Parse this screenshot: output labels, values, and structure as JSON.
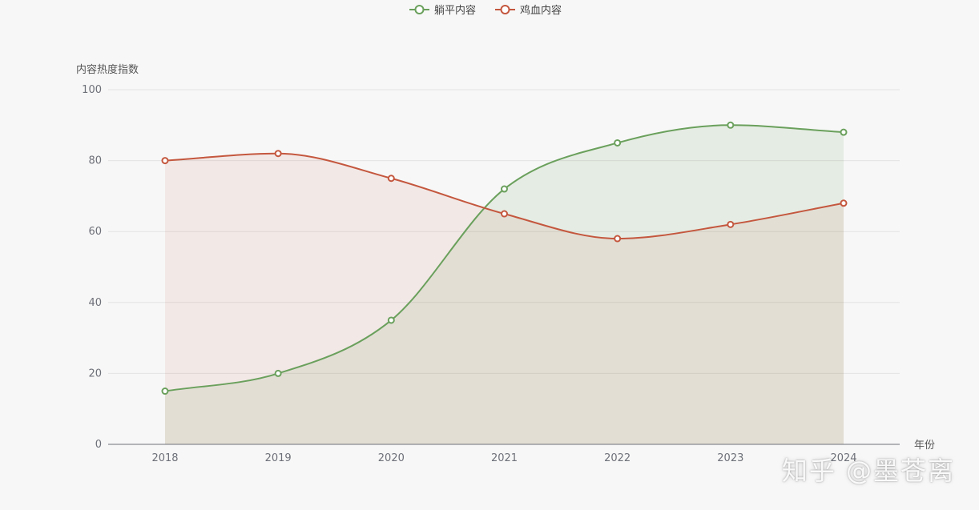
{
  "chart_data": {
    "type": "area",
    "categories": [
      "2018",
      "2019",
      "2020",
      "2021",
      "2022",
      "2023",
      "2024"
    ],
    "series": [
      {
        "name": "躺平内容",
        "values": [
          15,
          20,
          35,
          72,
          85,
          90,
          88
        ],
        "color": "#6aa05c",
        "fill": "rgba(106,160,92,0.13)"
      },
      {
        "name": "鸡血内容",
        "values": [
          80,
          82,
          75,
          65,
          58,
          62,
          68
        ],
        "color": "#c4573e",
        "fill": "rgba(196,87,62,0.09)"
      }
    ],
    "xlabel": "年份",
    "ylabel": "内容热度指数",
    "ylim": [
      0,
      100
    ],
    "yticks": [
      0,
      20,
      40,
      60,
      80,
      100
    ],
    "grid": true,
    "smooth": true,
    "legend_position": "top-center"
  },
  "watermark": "知乎 @墨苍离"
}
